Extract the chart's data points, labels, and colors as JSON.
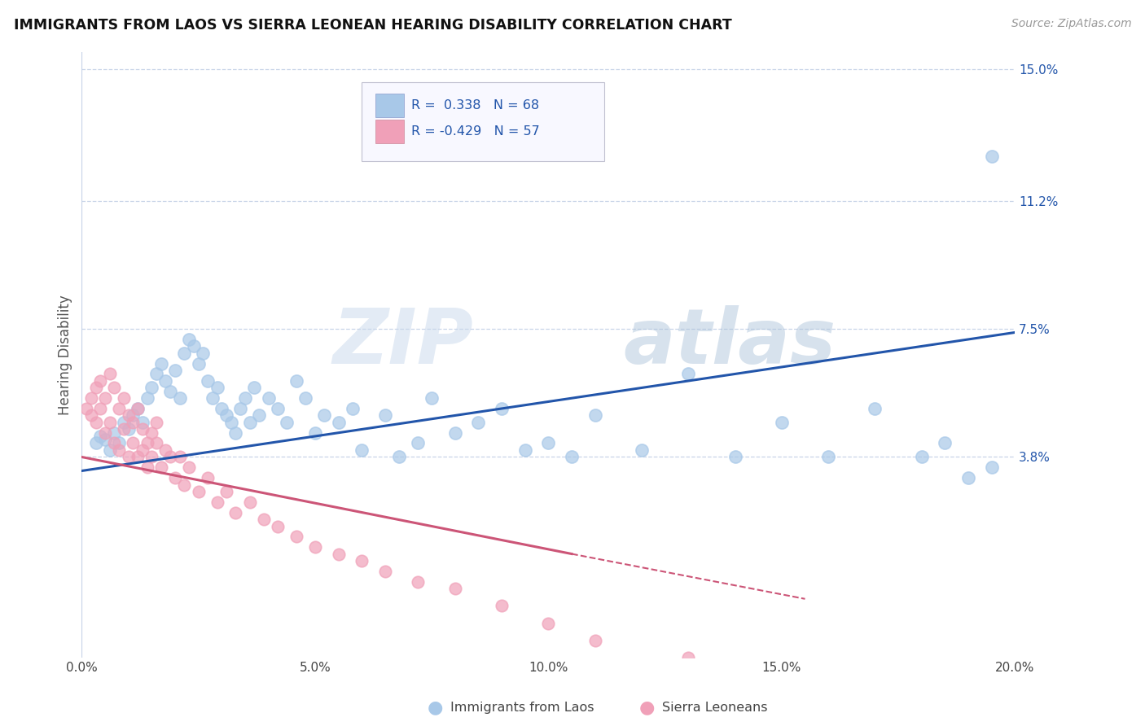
{
  "title": "IMMIGRANTS FROM LAOS VS SIERRA LEONEAN HEARING DISABILITY CORRELATION CHART",
  "source": "Source: ZipAtlas.com",
  "ylabel": "Hearing Disability",
  "xmin": 0.0,
  "xmax": 0.2,
  "ymin": -0.02,
  "ymax": 0.155,
  "yticks": [
    0.038,
    0.075,
    0.112,
    0.15
  ],
  "ytick_labels": [
    "3.8%",
    "7.5%",
    "11.2%",
    "15.0%"
  ],
  "xticks": [
    0.0,
    0.05,
    0.1,
    0.15,
    0.2
  ],
  "xtick_labels": [
    "0.0%",
    "5.0%",
    "10.0%",
    "15.0%",
    "20.0%"
  ],
  "blue_color": "#a8c8e8",
  "pink_color": "#f0a0b8",
  "trendline_blue": "#2255aa",
  "trendline_pink": "#cc5577",
  "legend_R_blue": "0.338",
  "legend_N_blue": "68",
  "legend_R_pink": "-0.429",
  "legend_N_pink": "57",
  "legend_label_blue": "Immigrants from Laos",
  "legend_label_pink": "Sierra Leoneans",
  "watermark_zip": "ZIP",
  "watermark_atlas": "atlas",
  "background_color": "#ffffff",
  "grid_color": "#c8d4e8",
  "blue_trend_x0": 0.0,
  "blue_trend_x1": 0.2,
  "blue_trend_y0": 0.034,
  "blue_trend_y1": 0.074,
  "pink_trend_solid_x0": 0.0,
  "pink_trend_solid_x1": 0.105,
  "pink_trend_solid_y0": 0.038,
  "pink_trend_solid_y1": 0.01,
  "pink_trend_dash_x0": 0.105,
  "pink_trend_dash_x1": 0.155,
  "pink_trend_dash_y0": 0.01,
  "pink_trend_dash_y1": -0.003,
  "blue_x": [
    0.003,
    0.004,
    0.005,
    0.006,
    0.007,
    0.008,
    0.009,
    0.01,
    0.011,
    0.012,
    0.013,
    0.014,
    0.015,
    0.016,
    0.017,
    0.018,
    0.019,
    0.02,
    0.021,
    0.022,
    0.023,
    0.024,
    0.025,
    0.026,
    0.027,
    0.028,
    0.029,
    0.03,
    0.031,
    0.032,
    0.033,
    0.034,
    0.035,
    0.036,
    0.037,
    0.038,
    0.04,
    0.042,
    0.044,
    0.046,
    0.048,
    0.05,
    0.052,
    0.055,
    0.058,
    0.06,
    0.065,
    0.068,
    0.072,
    0.075,
    0.08,
    0.085,
    0.09,
    0.095,
    0.1,
    0.105,
    0.11,
    0.12,
    0.13,
    0.14,
    0.15,
    0.16,
    0.17,
    0.18,
    0.185,
    0.19,
    0.195,
    0.195
  ],
  "blue_y": [
    0.042,
    0.044,
    0.043,
    0.04,
    0.045,
    0.042,
    0.048,
    0.046,
    0.05,
    0.052,
    0.048,
    0.055,
    0.058,
    0.062,
    0.065,
    0.06,
    0.057,
    0.063,
    0.055,
    0.068,
    0.072,
    0.07,
    0.065,
    0.068,
    0.06,
    0.055,
    0.058,
    0.052,
    0.05,
    0.048,
    0.045,
    0.052,
    0.055,
    0.048,
    0.058,
    0.05,
    0.055,
    0.052,
    0.048,
    0.06,
    0.055,
    0.045,
    0.05,
    0.048,
    0.052,
    0.04,
    0.05,
    0.038,
    0.042,
    0.055,
    0.045,
    0.048,
    0.052,
    0.04,
    0.042,
    0.038,
    0.05,
    0.04,
    0.062,
    0.038,
    0.048,
    0.038,
    0.052,
    0.038,
    0.042,
    0.032,
    0.035,
    0.125
  ],
  "pink_x": [
    0.001,
    0.002,
    0.002,
    0.003,
    0.003,
    0.004,
    0.004,
    0.005,
    0.005,
    0.006,
    0.006,
    0.007,
    0.007,
    0.008,
    0.008,
    0.009,
    0.009,
    0.01,
    0.01,
    0.011,
    0.011,
    0.012,
    0.012,
    0.013,
    0.013,
    0.014,
    0.014,
    0.015,
    0.015,
    0.016,
    0.016,
    0.017,
    0.018,
    0.019,
    0.02,
    0.021,
    0.022,
    0.023,
    0.025,
    0.027,
    0.029,
    0.031,
    0.033,
    0.036,
    0.039,
    0.042,
    0.046,
    0.05,
    0.055,
    0.06,
    0.065,
    0.072,
    0.08,
    0.09,
    0.1,
    0.11,
    0.13
  ],
  "pink_y": [
    0.052,
    0.05,
    0.055,
    0.048,
    0.058,
    0.052,
    0.06,
    0.055,
    0.045,
    0.062,
    0.048,
    0.058,
    0.042,
    0.052,
    0.04,
    0.055,
    0.046,
    0.05,
    0.038,
    0.048,
    0.042,
    0.052,
    0.038,
    0.046,
    0.04,
    0.042,
    0.035,
    0.045,
    0.038,
    0.042,
    0.048,
    0.035,
    0.04,
    0.038,
    0.032,
    0.038,
    0.03,
    0.035,
    0.028,
    0.032,
    0.025,
    0.028,
    0.022,
    0.025,
    0.02,
    0.018,
    0.015,
    0.012,
    0.01,
    0.008,
    0.005,
    0.002,
    0.0,
    -0.005,
    -0.01,
    -0.015,
    -0.02
  ]
}
